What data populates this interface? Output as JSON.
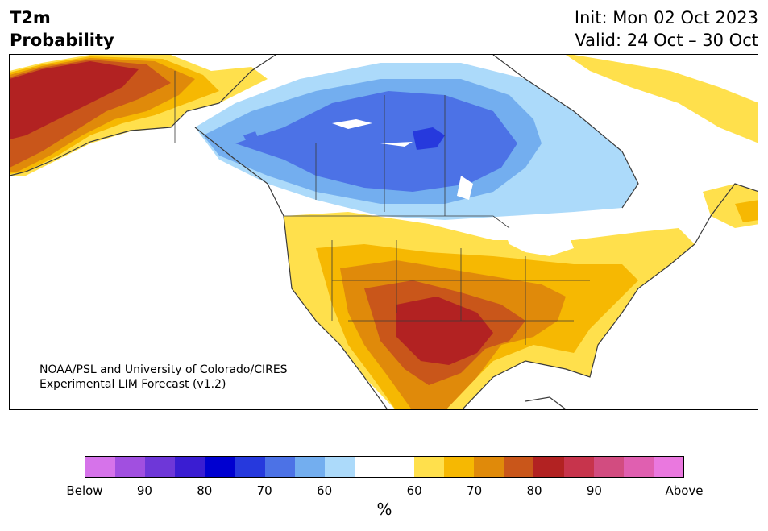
{
  "header": {
    "variable": "T2m",
    "product": "Probability",
    "init": "Init: Mon 02 Oct 2023",
    "valid": "Valid: 24 Oct – 30 Oct"
  },
  "credit": {
    "line1": "NOAA/PSL and University of Colorado/CIRES",
    "line2": "Experimental LIM Forecast (v1.2)"
  },
  "colors": {
    "below": [
      "#d673ea",
      "#a14fe0",
      "#6e37d8",
      "#3a1dd2",
      "#0000d0",
      "#2639dd",
      "#4c72e6",
      "#73aeef",
      "#acdafa"
    ],
    "neutral": "#ffffff",
    "above": [
      "#ffe04c",
      "#f6b802",
      "#e08a0a",
      "#c9561a",
      "#b22222",
      "#c7344c",
      "#d24c80",
      "#e05fb0",
      "#ea78df"
    ],
    "land_border": "#3a3a3a"
  },
  "colorbar": {
    "unit": "%",
    "tick_labels": [
      {
        "label": "Below"
      },
      {
        "label": "90"
      },
      {
        "label": "80"
      },
      {
        "label": "70"
      },
      {
        "label": "60"
      },
      {
        "label": "60"
      },
      {
        "label": "70"
      },
      {
        "label": "80"
      },
      {
        "label": "90"
      },
      {
        "label": "Above"
      }
    ]
  }
}
